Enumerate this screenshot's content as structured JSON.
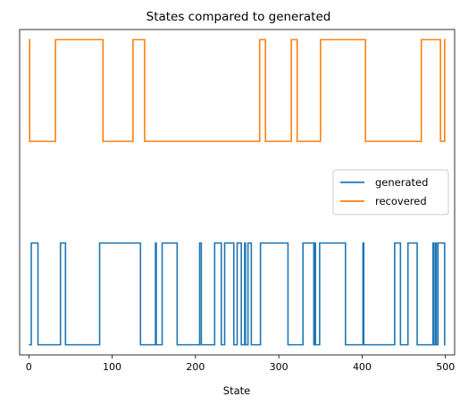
{
  "chart_data": {
    "type": "line",
    "title": "States compared to generated",
    "xlabel": "State",
    "ylabel": "",
    "xlim": [
      -11,
      511
    ],
    "ylim": [
      -0.1,
      3.1
    ],
    "x_ticks": [
      0,
      100,
      200,
      300,
      400,
      500
    ],
    "y_ticks_visible": false,
    "grid": false,
    "legend": {
      "placement": "center-right"
    },
    "series": [
      {
        "name": "generated",
        "color": "#1f77b4",
        "offset": 0,
        "transitions": [
          0,
          3,
          11,
          38,
          44,
          85,
          134,
          152,
          153,
          160,
          178,
          205,
          207,
          223,
          231,
          235,
          246,
          250,
          255,
          259,
          260,
          263,
          267,
          278,
          311,
          329,
          342,
          343,
          344,
          349,
          380,
          401,
          402,
          439,
          446,
          455,
          466,
          485,
          486,
          488,
          489,
          491,
          499
        ],
        "start_state": 0,
        "end_x": 500
      },
      {
        "name": "recovered",
        "color": "#ff7f0e",
        "offset": 2,
        "transitions": [
          0,
          1,
          32,
          89,
          125,
          139,
          277,
          284,
          315,
          322,
          350,
          404,
          471,
          494,
          499
        ],
        "start_state": 1,
        "end_x": 500
      }
    ]
  }
}
